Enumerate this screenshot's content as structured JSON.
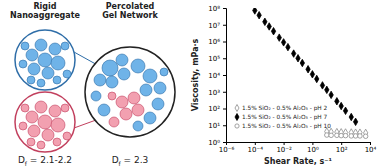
{
  "chart_data": {
    "type": "scatter",
    "x_label": "Shear Rate, s⁻¹",
    "y_label": "Viscosity, mPa·s",
    "log": true,
    "legend": "lower left",
    "xlim": [
      1e-06,
      10000
    ],
    "xticks": [
      {
        "value": 1e-06,
        "label": "10⁻⁶"
      },
      {
        "value": 0.0001,
        "label": "10⁻⁴"
      },
      {
        "value": 0.01,
        "label": "10⁻²"
      },
      {
        "value": 1,
        "label": "10⁰"
      },
      {
        "value": 100,
        "label": "10²"
      },
      {
        "value": 10000,
        "label": "10⁴"
      }
    ],
    "ylim": [
      1,
      100000000
    ],
    "yticks": [
      {
        "value": 1,
        "label": "10⁰"
      },
      {
        "value": 10,
        "label": "10¹"
      },
      {
        "value": 100,
        "label": "10²"
      },
      {
        "value": 1000,
        "label": "10³"
      },
      {
        "value": 10000,
        "label": "10⁴"
      },
      {
        "value": 100000,
        "label": "10⁵"
      },
      {
        "value": 1000000,
        "label": "10⁶"
      },
      {
        "value": 10000000,
        "label": "10⁷"
      },
      {
        "value": 100000000,
        "label": "10⁸"
      }
    ],
    "series": [
      {
        "name": "1.5% SiO₂ - 0.5% Al₂O₃ - pH 2",
        "color": "#8c8c8c",
        "marker": "diamond-open",
        "x": [
          10,
          20,
          50,
          100,
          200,
          500,
          1000,
          2000,
          5000
        ],
        "values": [
          4.2,
          4.0,
          3.9,
          3.8,
          3.7,
          3.7,
          3.6,
          3.6,
          3.5
        ]
      },
      {
        "name": "1.5% SiO₂ - 0.5% Al₂O₃ - pH 7",
        "color": "#000000",
        "marker": "diamond",
        "x": [
          0.0001,
          0.0002,
          0.0005,
          0.001,
          0.002,
          0.005,
          0.01,
          0.02,
          0.05,
          0.1,
          0.2,
          0.5,
          1,
          2,
          5,
          10,
          20,
          50,
          100,
          200,
          500,
          1000
        ],
        "values": [
          71000000,
          37000000,
          15000000,
          7900000,
          4100000,
          1700000,
          890000,
          460000,
          190000,
          100000,
          52000,
          22000,
          11000,
          5800,
          2400,
          1300,
          650,
          270,
          140,
          73,
          31,
          16
        ]
      },
      {
        "name": "1.5% SiO₂ - 0.5% Al₂O₃ - pH 10",
        "color": "#8c8c8c",
        "marker": "circle-open",
        "x": [
          10,
          20,
          50,
          100,
          200,
          500,
          1000,
          2000,
          5000
        ],
        "values": [
          2.6,
          2.5,
          2.5,
          2.4,
          2.4,
          2.3,
          2.3,
          2.3,
          2.2
        ]
      }
    ]
  },
  "diagram": {
    "nanoaggregate": {
      "label_lines": [
        "Rigid",
        "Nanoaggregate"
      ],
      "df_label": {
        "base": "D",
        "sub": "f",
        "text": " = 2.1-2.2"
      }
    },
    "gel_network": {
      "label_lines": [
        "Percolated",
        "Gel Network"
      ],
      "df_label": {
        "base": "D",
        "sub": "f",
        "text": " = 2.3"
      }
    }
  }
}
